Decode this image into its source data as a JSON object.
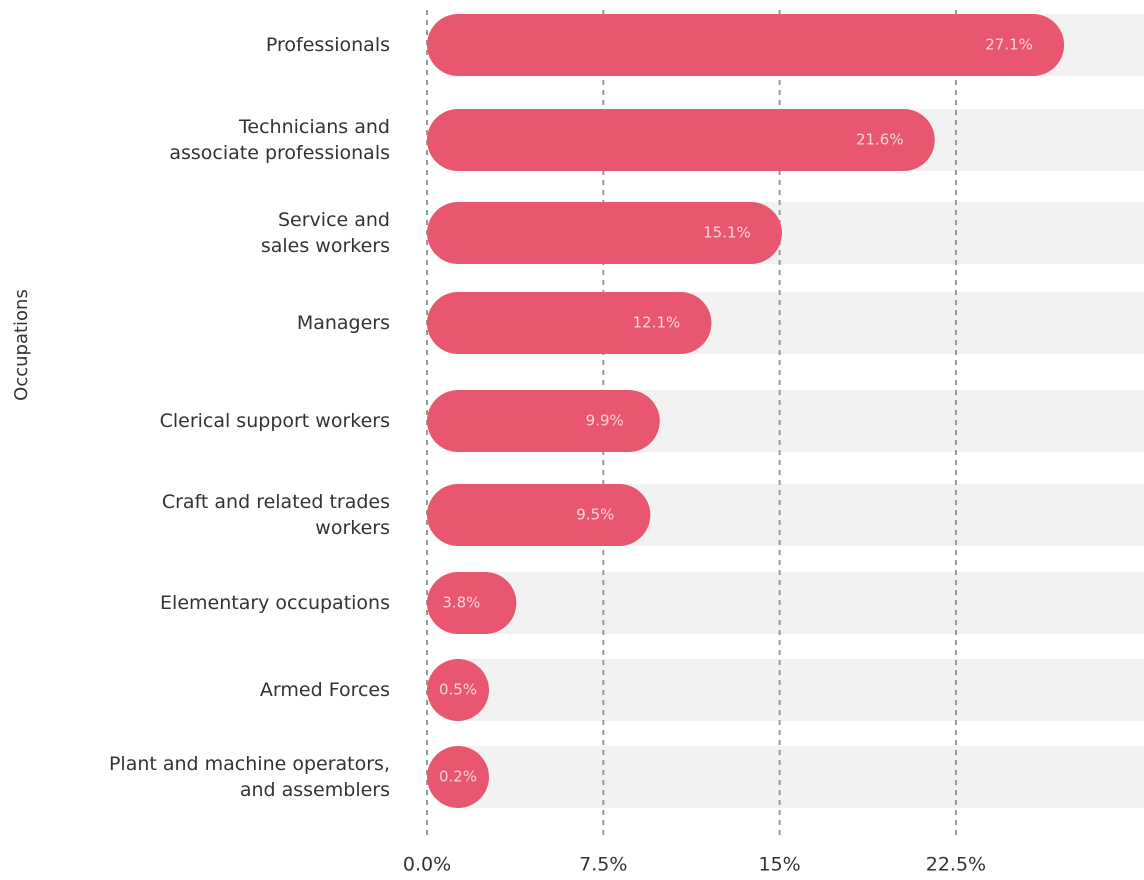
{
  "chart_data": {
    "type": "bar",
    "orientation": "horizontal",
    "y_label": "Occupations",
    "categories": [
      "Professionals",
      "Technicians and\nassociate professionals",
      "Service and\nsales workers",
      "Managers",
      "Clerical support workers",
      "Craft and related trades\nworkers",
      "Elementary occupations",
      "Armed Forces",
      "Plant and machine operators,\nand assemblers"
    ],
    "values": [
      27.1,
      21.6,
      15.1,
      12.1,
      9.9,
      9.5,
      3.8,
      0.5,
      0.2
    ],
    "value_labels": [
      "27.1%",
      "21.6%",
      "15.1%",
      "12.1%",
      "9.9%",
      "9.5%",
      "3.8%",
      "0.5%",
      "0.2%"
    ],
    "color": "#e9566f",
    "xlim": [
      0,
      30.5
    ],
    "xticks": [
      {
        "value": 0,
        "label": "0.0%"
      },
      {
        "value": 7.5,
        "label": "7.5%"
      },
      {
        "value": 15,
        "label": "15%"
      },
      {
        "value": 22.5,
        "label": "22.5%"
      }
    ],
    "grid": true
  }
}
